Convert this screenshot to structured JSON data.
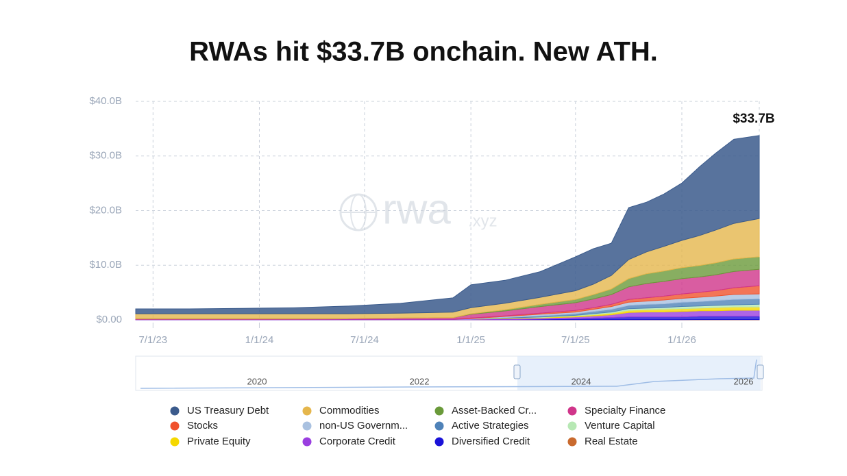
{
  "chart_data": {
    "type": "stacked_area",
    "title": "RWAs hit $33.7B onchain. New ATH.",
    "annotation": "$33.7B",
    "watermark": {
      "main": "rwa",
      "suffix": ".xyz"
    },
    "navigator_labels": [
      "2020",
      "2022",
      "2024",
      "2026"
    ],
    "x": [
      "6/1/23",
      "9/1/23",
      "12/1/23",
      "3/1/24",
      "6/1/24",
      "9/1/24",
      "12/1/24",
      "1/1/25",
      "3/1/25",
      "5/1/25",
      "7/1/25",
      "8/1/25",
      "9/1/25",
      "10/1/25",
      "11/1/25",
      "12/1/25",
      "1/1/26",
      "2/1/26",
      "3/1/26",
      "4/1/26",
      "5/15/26"
    ],
    "xlim": [
      "6/1/23",
      "5/15/26"
    ],
    "xticks": [
      "7/1/23",
      "1/1/24",
      "7/1/24",
      "1/1/25",
      "7/1/25",
      "1/1/26"
    ],
    "ylim": [
      0,
      40
    ],
    "yticks": [
      {
        "value": 0,
        "label": "$0.00"
      },
      {
        "value": 10,
        "label": "$10.0B"
      },
      {
        "value": 20,
        "label": "$20.0B"
      },
      {
        "value": 30,
        "label": "$30.0B"
      },
      {
        "value": 40,
        "label": "$40.0B"
      }
    ],
    "grid": true,
    "series": [
      {
        "name": "US Treasury Debt",
        "color": "#3b5b8c",
        "values": [
          0.9,
          0.9,
          1.0,
          1.1,
          1.4,
          1.8,
          2.6,
          4.2,
          4.2,
          4.7,
          6.2,
          6.5,
          5.9,
          9.5,
          9.1,
          9.6,
          10.5,
          12.6,
          14.1,
          15.4,
          15.2
        ]
      },
      {
        "name": "Commodities",
        "color": "#e5b64c",
        "values": [
          0.9,
          0.9,
          0.9,
          0.9,
          0.9,
          0.9,
          1.0,
          1.1,
          1.2,
          1.3,
          1.6,
          1.9,
          2.5,
          3.5,
          4.0,
          4.5,
          5.0,
          5.5,
          6.0,
          6.5,
          7.0
        ]
      },
      {
        "name": "Asset-Backed Cr...",
        "color": "#6a9a3a",
        "values": [
          0,
          0,
          0,
          0,
          0,
          0,
          0,
          0.1,
          0.2,
          0.4,
          0.6,
          0.8,
          1.0,
          1.5,
          1.8,
          1.9,
          2.0,
          2.1,
          2.2,
          2.3,
          2.3
        ]
      },
      {
        "name": "Specialty Finance",
        "color": "#d0358a",
        "values": [
          0.1,
          0.1,
          0.1,
          0.1,
          0.1,
          0.2,
          0.3,
          0.7,
          0.9,
          1.2,
          1.4,
          1.6,
          1.8,
          2.3,
          2.6,
          2.7,
          2.8,
          2.8,
          2.9,
          3.0,
          3.0
        ]
      },
      {
        "name": "Stocks",
        "color": "#f0522d",
        "values": [
          0,
          0,
          0,
          0,
          0,
          0,
          0,
          0.1,
          0.1,
          0.2,
          0.3,
          0.3,
          0.4,
          0.5,
          0.6,
          0.7,
          0.8,
          0.9,
          1.0,
          1.2,
          1.5
        ]
      },
      {
        "name": "non-US Governm...",
        "color": "#a9c1e0",
        "values": [
          0,
          0,
          0,
          0,
          0,
          0,
          0,
          0.1,
          0.2,
          0.3,
          0.3,
          0.4,
          0.5,
          0.6,
          0.6,
          0.7,
          0.7,
          0.8,
          0.8,
          0.9,
          0.9
        ]
      },
      {
        "name": "Active Strategies",
        "color": "#4f82b8",
        "values": [
          0,
          0,
          0,
          0,
          0,
          0,
          0,
          0,
          0.1,
          0.2,
          0.3,
          0.4,
          0.5,
          0.6,
          0.7,
          0.7,
          0.8,
          0.8,
          0.9,
          1.0,
          1.0
        ]
      },
      {
        "name": "Venture Capital",
        "color": "#b7e8b4",
        "values": [
          0,
          0,
          0,
          0,
          0,
          0,
          0,
          0,
          0,
          0.1,
          0.1,
          0.2,
          0.2,
          0.3,
          0.3,
          0.3,
          0.4,
          0.4,
          0.4,
          0.4,
          0.5
        ]
      },
      {
        "name": "Private Equity",
        "color": "#f5d800",
        "values": [
          0,
          0,
          0,
          0,
          0,
          0,
          0,
          0,
          0.1,
          0.1,
          0.2,
          0.2,
          0.3,
          0.4,
          0.4,
          0.5,
          0.5,
          0.5,
          0.6,
          0.6,
          0.6
        ]
      },
      {
        "name": "Corporate Credit",
        "color": "#9a3ee0",
        "values": [
          0.1,
          0.1,
          0.1,
          0.1,
          0.1,
          0.1,
          0.1,
          0.1,
          0.2,
          0.2,
          0.3,
          0.4,
          0.5,
          0.8,
          0.9,
          0.9,
          1.0,
          1.0,
          1.0,
          1.1,
          1.1
        ]
      },
      {
        "name": "Diversified Credit",
        "color": "#1a12d8",
        "values": [
          0,
          0,
          0,
          0,
          0,
          0,
          0,
          0,
          0,
          0.1,
          0.2,
          0.3,
          0.4,
          0.5,
          0.5,
          0.5,
          0.5,
          0.6,
          0.6,
          0.6,
          0.6
        ]
      },
      {
        "name": "Real Estate",
        "color": "#c96a2e",
        "values": [
          0.01,
          0.01,
          0.01,
          0.01,
          0.02,
          0.02,
          0.02,
          0.02,
          0.03,
          0.03,
          0.03,
          0.03,
          0.03,
          0.04,
          0.04,
          0.04,
          0.04,
          0.05,
          0.05,
          0.05,
          0.05
        ]
      }
    ]
  }
}
